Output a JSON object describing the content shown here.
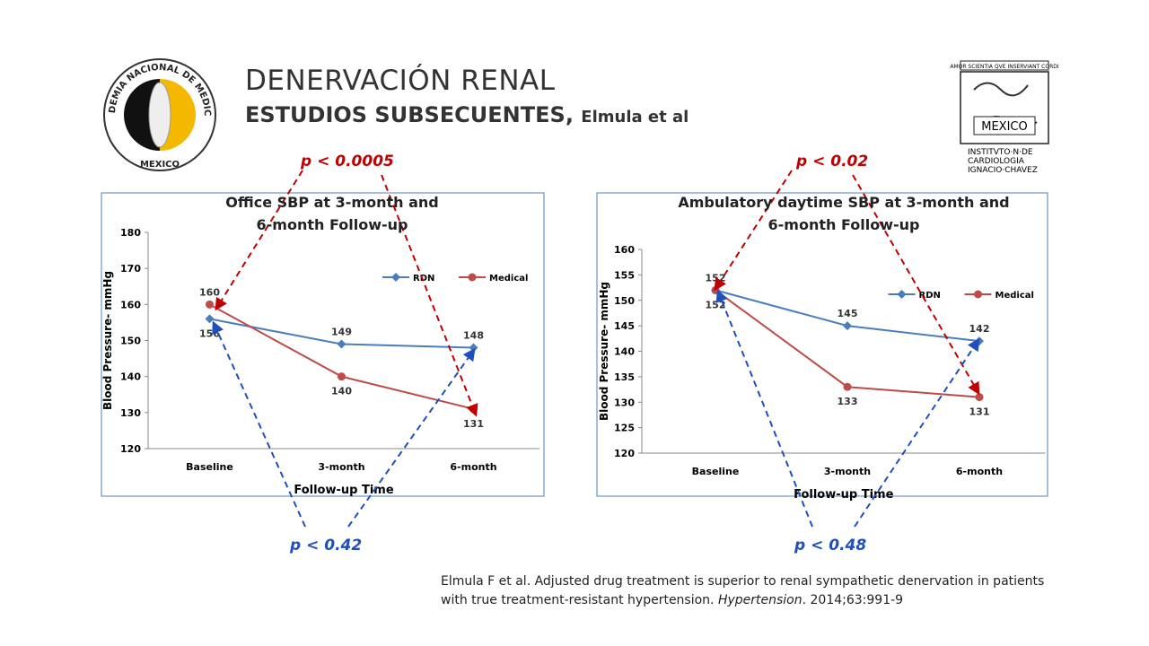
{
  "header": {
    "title": "DENERVACIÓN RENAL",
    "subtitle": "ESTUDIOS SUBSECUENTES,",
    "subtitle_author": "Elmula et al"
  },
  "logos": {
    "left": {
      "ring": "ACADEMIA NACIONAL DE MEDICINA",
      "bottom": "MEXICO"
    },
    "right": {
      "motto": "AMOR SCIENTIA QVE INSERVIANT CORDI",
      "center": "MEXICO",
      "line1": "INSTITVTO·N·DE",
      "line2": "CARDIOLOGIA",
      "line3": "IGNACIO·CHAVEZ"
    }
  },
  "annotations": [
    "p < 0.0005",
    "p < 0.42",
    "p < 0.02",
    "p < 0.48"
  ],
  "citation": {
    "text": "Elmula F et al. Adjusted drug treatment is superior to renal sympathetic denervation in patients with true treatment-resistant hypertension. ",
    "journal": "Hypertension",
    "details": ". 2014;63:991-9"
  },
  "chart_data": [
    {
      "type": "line",
      "title": "Office SBP at 3-month and 6-month Follow-up",
      "x_label": "Follow-up Time",
      "y_label": "Blood Pressure- mmHg",
      "categories": [
        "Baseline",
        "3-month",
        "6-month"
      ],
      "series": [
        {
          "name": "RDN",
          "color": "#4a7ebb",
          "marker": "diamond",
          "values": [
            156,
            149,
            148
          ]
        },
        {
          "name": "Medical",
          "color": "#be4b48",
          "marker": "circle",
          "values": [
            160,
            140,
            131
          ]
        }
      ],
      "ylim": [
        120,
        180
      ],
      "yticks": [
        120,
        130,
        140,
        150,
        160,
        170,
        180
      ],
      "legend": "upper right"
    },
    {
      "type": "line",
      "title": "Ambulatory daytime SBP at 3-month and 6-month Follow-up",
      "x_label": "Follow-up Time",
      "y_label": "Blood Pressure- mmHg",
      "categories": [
        "Baseline",
        "3-month",
        "6-month"
      ],
      "series": [
        {
          "name": "RDN",
          "color": "#4a7ebb",
          "marker": "diamond",
          "values": [
            152,
            145,
            142
          ]
        },
        {
          "name": "Medical",
          "color": "#be4b48",
          "marker": "circle",
          "values": [
            152,
            133,
            131
          ]
        }
      ],
      "ylim": [
        120,
        160
      ],
      "yticks": [
        120,
        125,
        130,
        135,
        140,
        145,
        150,
        155,
        160
      ],
      "legend": "upper right"
    }
  ]
}
